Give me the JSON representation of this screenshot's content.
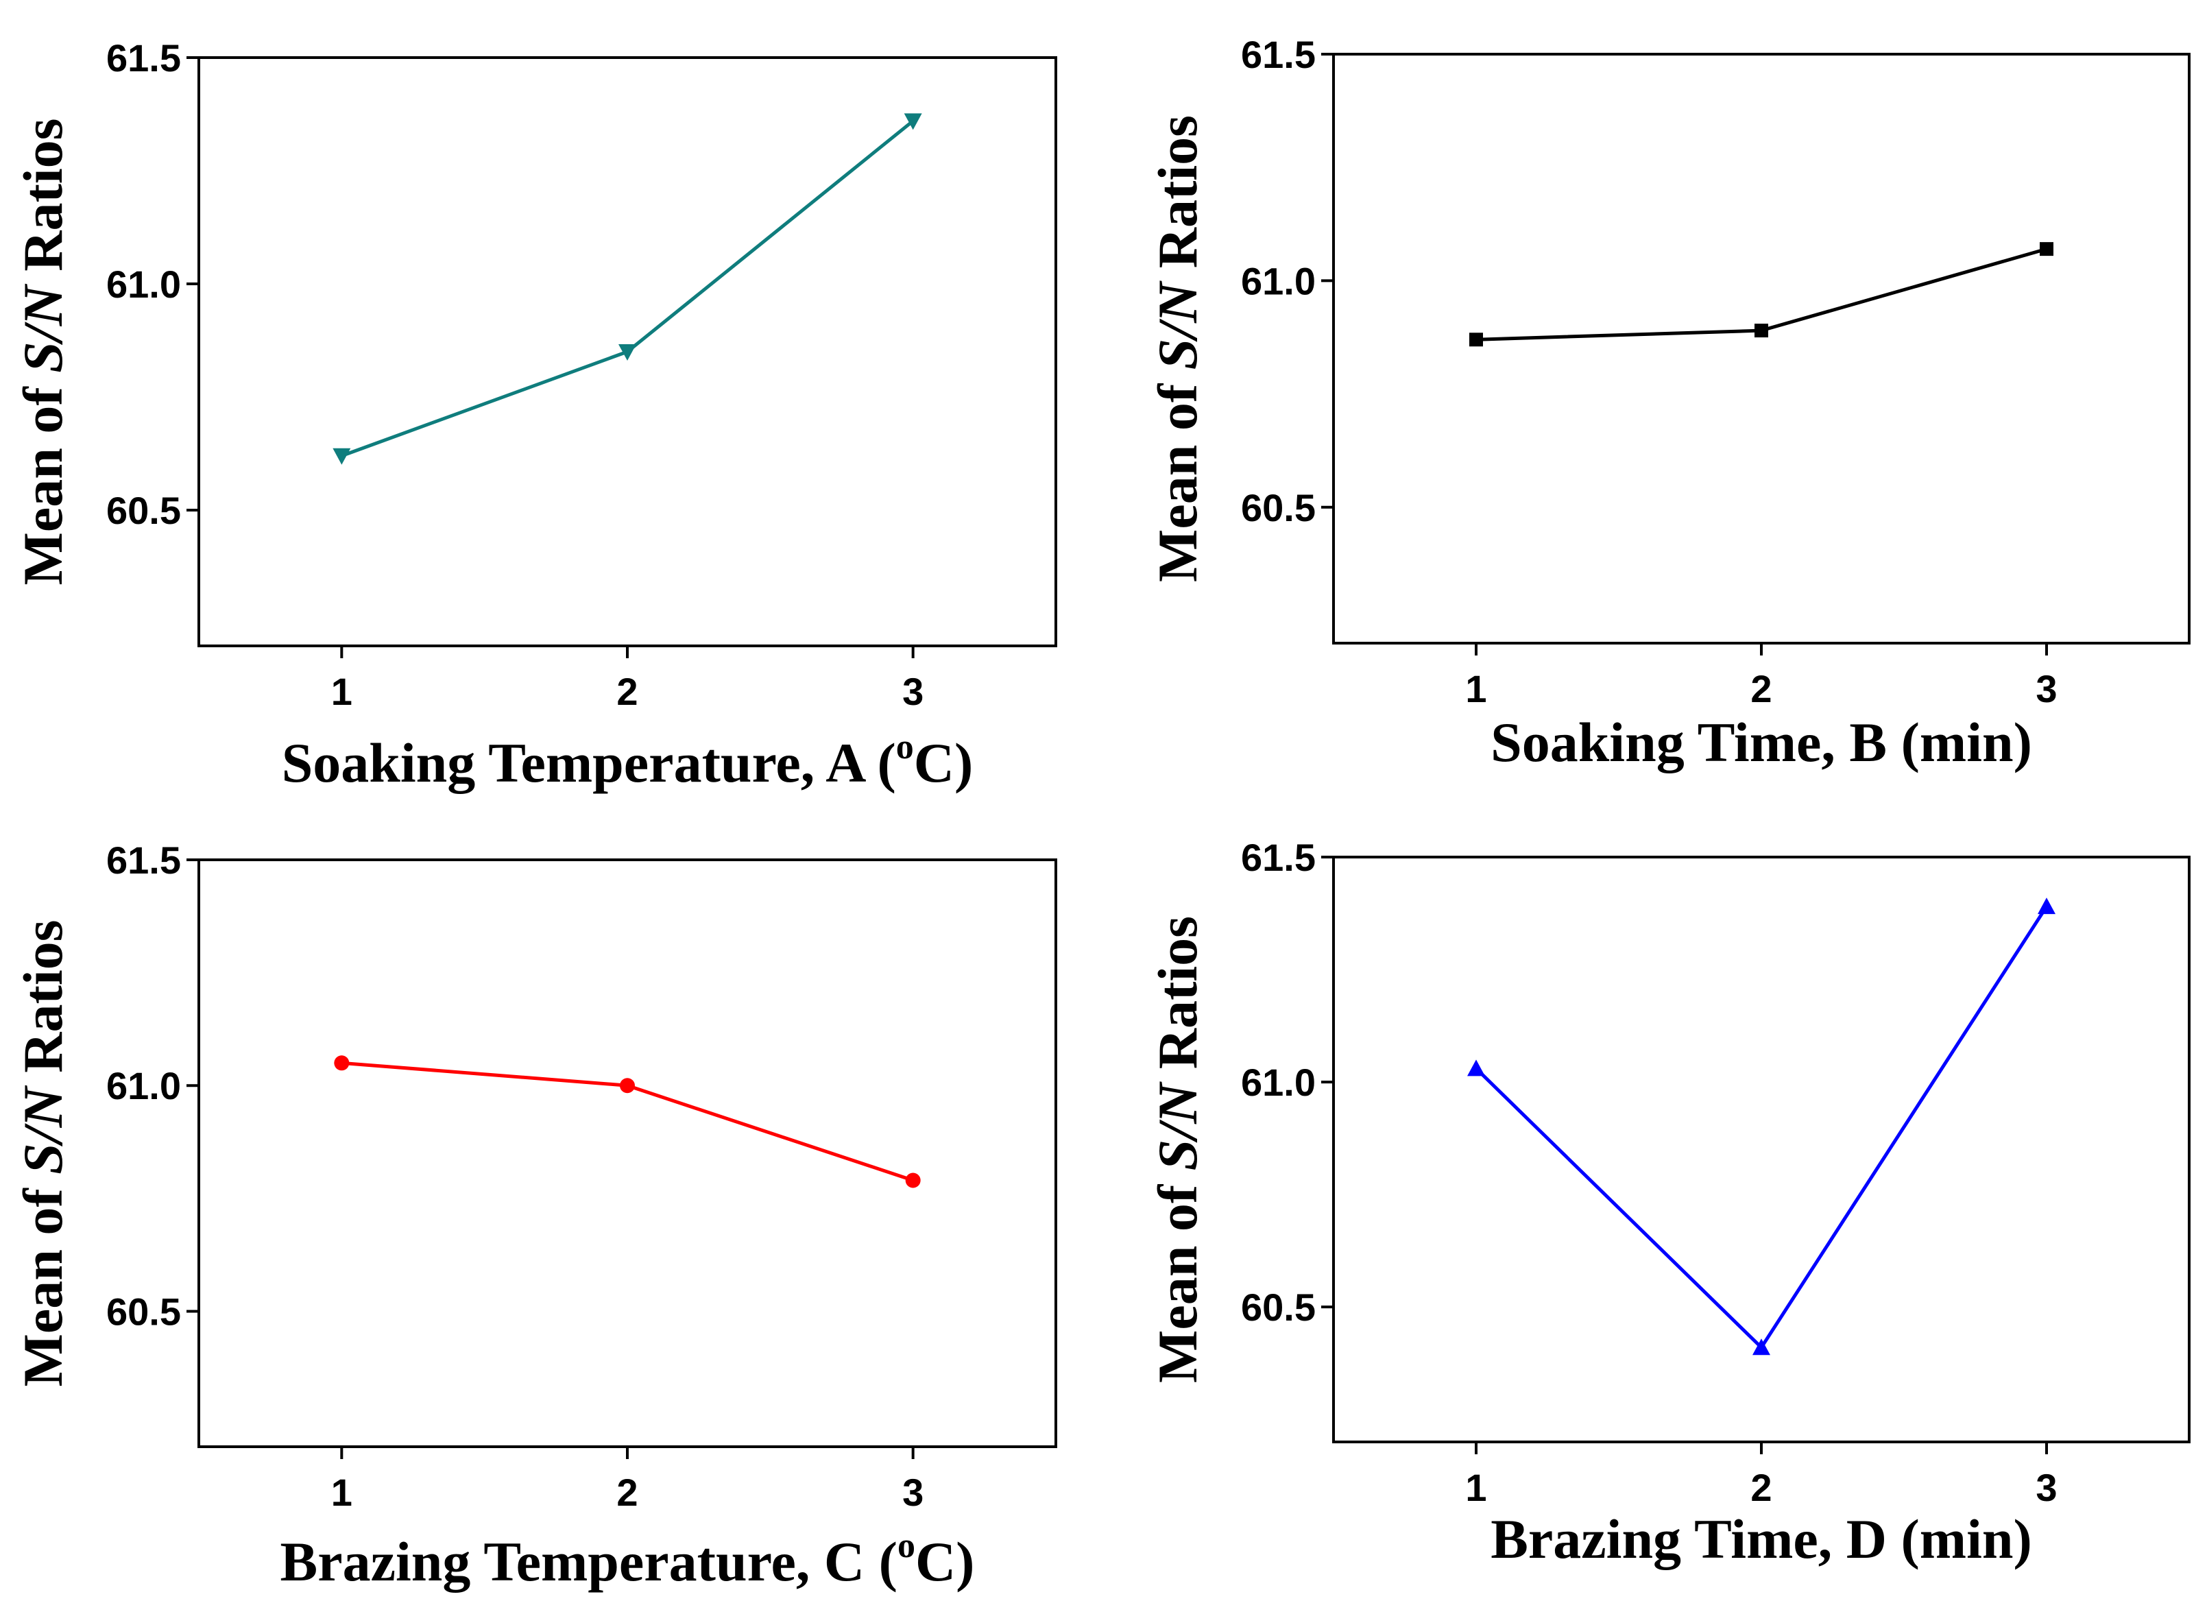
{
  "chart_data": [
    {
      "type": "line",
      "panel": "top-left",
      "x": [
        1,
        2,
        3
      ],
      "values": [
        60.62,
        60.85,
        61.36
      ],
      "xlim": [
        0.5,
        3.5
      ],
      "ylim": [
        60.2,
        61.5
      ],
      "xticks": [
        "1",
        "2",
        "3"
      ],
      "yticks": [
        {
          "v": 60.5,
          "label": "60.5"
        },
        {
          "v": 61.0,
          "label": "61.0"
        },
        {
          "v": 61.5,
          "label": "61.5"
        }
      ],
      "ylabel": {
        "pre": "Mean of ",
        "italic": "S/N",
        "post": " Ratios"
      },
      "xlabel": {
        "pre": "Soaking Temperature, A (",
        "sup": "o",
        "post": "C)"
      },
      "color": "#0f7d7d",
      "marker": "triangle-down"
    },
    {
      "type": "line",
      "panel": "top-right",
      "x": [
        1,
        2,
        3
      ],
      "values": [
        60.87,
        60.89,
        61.07
      ],
      "xlim": [
        0.5,
        3.5
      ],
      "ylim": [
        60.2,
        61.5
      ],
      "xticks": [
        "1",
        "2",
        "3"
      ],
      "yticks": [
        {
          "v": 60.5,
          "label": "60.5"
        },
        {
          "v": 61.0,
          "label": "61.0"
        },
        {
          "v": 61.5,
          "label": "61.5"
        }
      ],
      "ylabel": {
        "pre": "Mean of ",
        "italic": "S/N",
        "post": " Ratios"
      },
      "xlabel": {
        "pre": "Soaking Time, B (min)",
        "sup": "",
        "post": ""
      },
      "color": "#000000",
      "marker": "square"
    },
    {
      "type": "line",
      "panel": "bottom-left",
      "x": [
        1,
        2,
        3
      ],
      "values": [
        61.05,
        61.0,
        60.79
      ],
      "xlim": [
        0.5,
        3.5
      ],
      "ylim": [
        60.2,
        61.5
      ],
      "xticks": [
        "1",
        "2",
        "3"
      ],
      "yticks": [
        {
          "v": 60.5,
          "label": "60.5"
        },
        {
          "v": 61.0,
          "label": "61.0"
        },
        {
          "v": 61.5,
          "label": "61.5"
        }
      ],
      "ylabel": {
        "pre": "Mean of ",
        "italic": "S/N",
        "post": " Ratios"
      },
      "xlabel": {
        "pre": "Brazing Temperature, C (",
        "sup": "o",
        "post": "C)"
      },
      "color": "#ff0000",
      "marker": "circle"
    },
    {
      "type": "line",
      "panel": "bottom-right",
      "x": [
        1,
        2,
        3
      ],
      "values": [
        61.03,
        60.41,
        61.39
      ],
      "xlim": [
        0.5,
        3.5
      ],
      "ylim": [
        60.2,
        61.5
      ],
      "xticks": [
        "1",
        "2",
        "3"
      ],
      "yticks": [
        {
          "v": 60.5,
          "label": "60.5"
        },
        {
          "v": 61.0,
          "label": "61.0"
        },
        {
          "v": 61.5,
          "label": "61.5"
        }
      ],
      "ylabel": {
        "pre": "Mean of ",
        "italic": "S/N",
        "post": " Ratios"
      },
      "xlabel": {
        "pre": "Brazing Time, D (min)",
        "sup": "",
        "post": ""
      },
      "color": "#0000ff",
      "marker": "triangle-up"
    }
  ]
}
